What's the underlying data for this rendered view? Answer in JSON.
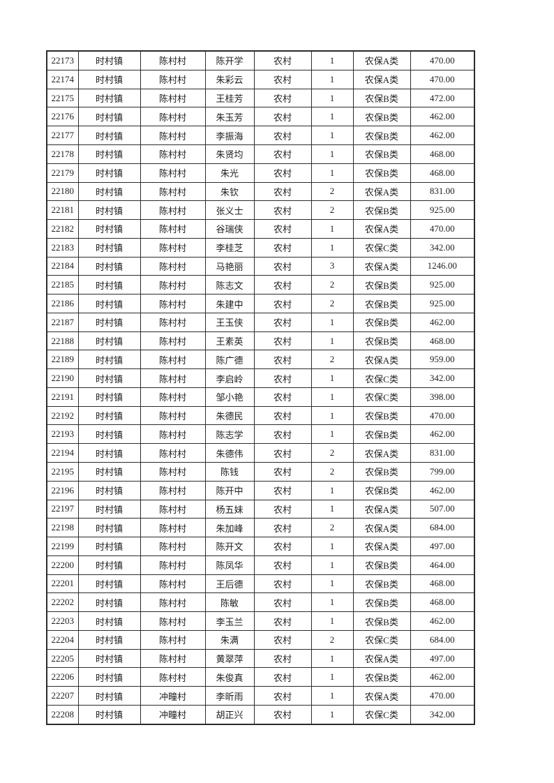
{
  "page": {
    "background_color": "#ffffff",
    "text_color": "#1e1e1e",
    "border_color": "#2b2b2b"
  },
  "table": {
    "columns": [
      "id",
      "town",
      "village",
      "name",
      "category",
      "count",
      "insurance_type",
      "amount"
    ],
    "rows": [
      [
        "22173",
        "时村镇",
        "陈村村",
        "陈开学",
        "农村",
        "1",
        "农保A类",
        "470.00"
      ],
      [
        "22174",
        "时村镇",
        "陈村村",
        "朱彩云",
        "农村",
        "1",
        "农保A类",
        "470.00"
      ],
      [
        "22175",
        "时村镇",
        "陈村村",
        "王桂芳",
        "农村",
        "1",
        "农保B类",
        "472.00"
      ],
      [
        "22176",
        "时村镇",
        "陈村村",
        "朱玉芳",
        "农村",
        "1",
        "农保B类",
        "462.00"
      ],
      [
        "22177",
        "时村镇",
        "陈村村",
        "李振海",
        "农村",
        "1",
        "农保B类",
        "462.00"
      ],
      [
        "22178",
        "时村镇",
        "陈村村",
        "朱贤均",
        "农村",
        "1",
        "农保B类",
        "468.00"
      ],
      [
        "22179",
        "时村镇",
        "陈村村",
        "朱光",
        "农村",
        "1",
        "农保B类",
        "468.00"
      ],
      [
        "22180",
        "时村镇",
        "陈村村",
        "朱钦",
        "农村",
        "2",
        "农保A类",
        "831.00"
      ],
      [
        "22181",
        "时村镇",
        "陈村村",
        "张义士",
        "农村",
        "2",
        "农保B类",
        "925.00"
      ],
      [
        "22182",
        "时村镇",
        "陈村村",
        "谷瑞侠",
        "农村",
        "1",
        "农保A类",
        "470.00"
      ],
      [
        "22183",
        "时村镇",
        "陈村村",
        "李桂芝",
        "农村",
        "1",
        "农保C类",
        "342.00"
      ],
      [
        "22184",
        "时村镇",
        "陈村村",
        "马艳丽",
        "农村",
        "3",
        "农保A类",
        "1246.00"
      ],
      [
        "22185",
        "时村镇",
        "陈村村",
        "陈志文",
        "农村",
        "2",
        "农保B类",
        "925.00"
      ],
      [
        "22186",
        "时村镇",
        "陈村村",
        "朱建中",
        "农村",
        "2",
        "农保B类",
        "925.00"
      ],
      [
        "22187",
        "时村镇",
        "陈村村",
        "王玉侠",
        "农村",
        "1",
        "农保B类",
        "462.00"
      ],
      [
        "22188",
        "时村镇",
        "陈村村",
        "王素英",
        "农村",
        "1",
        "农保B类",
        "468.00"
      ],
      [
        "22189",
        "时村镇",
        "陈村村",
        "陈广德",
        "农村",
        "2",
        "农保A类",
        "959.00"
      ],
      [
        "22190",
        "时村镇",
        "陈村村",
        "李启岭",
        "农村",
        "1",
        "农保C类",
        "342.00"
      ],
      [
        "22191",
        "时村镇",
        "陈村村",
        "邹小艳",
        "农村",
        "1",
        "农保C类",
        "398.00"
      ],
      [
        "22192",
        "时村镇",
        "陈村村",
        "朱德民",
        "农村",
        "1",
        "农保B类",
        "470.00"
      ],
      [
        "22193",
        "时村镇",
        "陈村村",
        "陈志学",
        "农村",
        "1",
        "农保B类",
        "462.00"
      ],
      [
        "22194",
        "时村镇",
        "陈村村",
        "朱德伟",
        "农村",
        "2",
        "农保A类",
        "831.00"
      ],
      [
        "22195",
        "时村镇",
        "陈村村",
        "陈钱",
        "农村",
        "2",
        "农保B类",
        "799.00"
      ],
      [
        "22196",
        "时村镇",
        "陈村村",
        "陈开中",
        "农村",
        "1",
        "农保B类",
        "462.00"
      ],
      [
        "22197",
        "时村镇",
        "陈村村",
        "杨五妹",
        "农村",
        "1",
        "农保A类",
        "507.00"
      ],
      [
        "22198",
        "时村镇",
        "陈村村",
        "朱加峰",
        "农村",
        "2",
        "农保A类",
        "684.00"
      ],
      [
        "22199",
        "时村镇",
        "陈村村",
        "陈开文",
        "农村",
        "1",
        "农保A类",
        "497.00"
      ],
      [
        "22200",
        "时村镇",
        "陈村村",
        "陈凤华",
        "农村",
        "1",
        "农保B类",
        "464.00"
      ],
      [
        "22201",
        "时村镇",
        "陈村村",
        "王后德",
        "农村",
        "1",
        "农保B类",
        "468.00"
      ],
      [
        "22202",
        "时村镇",
        "陈村村",
        "陈敏",
        "农村",
        "1",
        "农保B类",
        "468.00"
      ],
      [
        "22203",
        "时村镇",
        "陈村村",
        "李玉兰",
        "农村",
        "1",
        "农保B类",
        "462.00"
      ],
      [
        "22204",
        "时村镇",
        "陈村村",
        "朱满",
        "农村",
        "2",
        "农保C类",
        "684.00"
      ],
      [
        "22205",
        "时村镇",
        "陈村村",
        "黄翠萍",
        "农村",
        "1",
        "农保A类",
        "497.00"
      ],
      [
        "22206",
        "时村镇",
        "陈村村",
        "朱俊真",
        "农村",
        "1",
        "农保B类",
        "462.00"
      ],
      [
        "22207",
        "时村镇",
        "冲疃村",
        "李昕雨",
        "农村",
        "1",
        "农保A类",
        "470.00"
      ],
      [
        "22208",
        "时村镇",
        "冲疃村",
        "胡正兴",
        "农村",
        "1",
        "农保C类",
        "342.00"
      ]
    ]
  }
}
